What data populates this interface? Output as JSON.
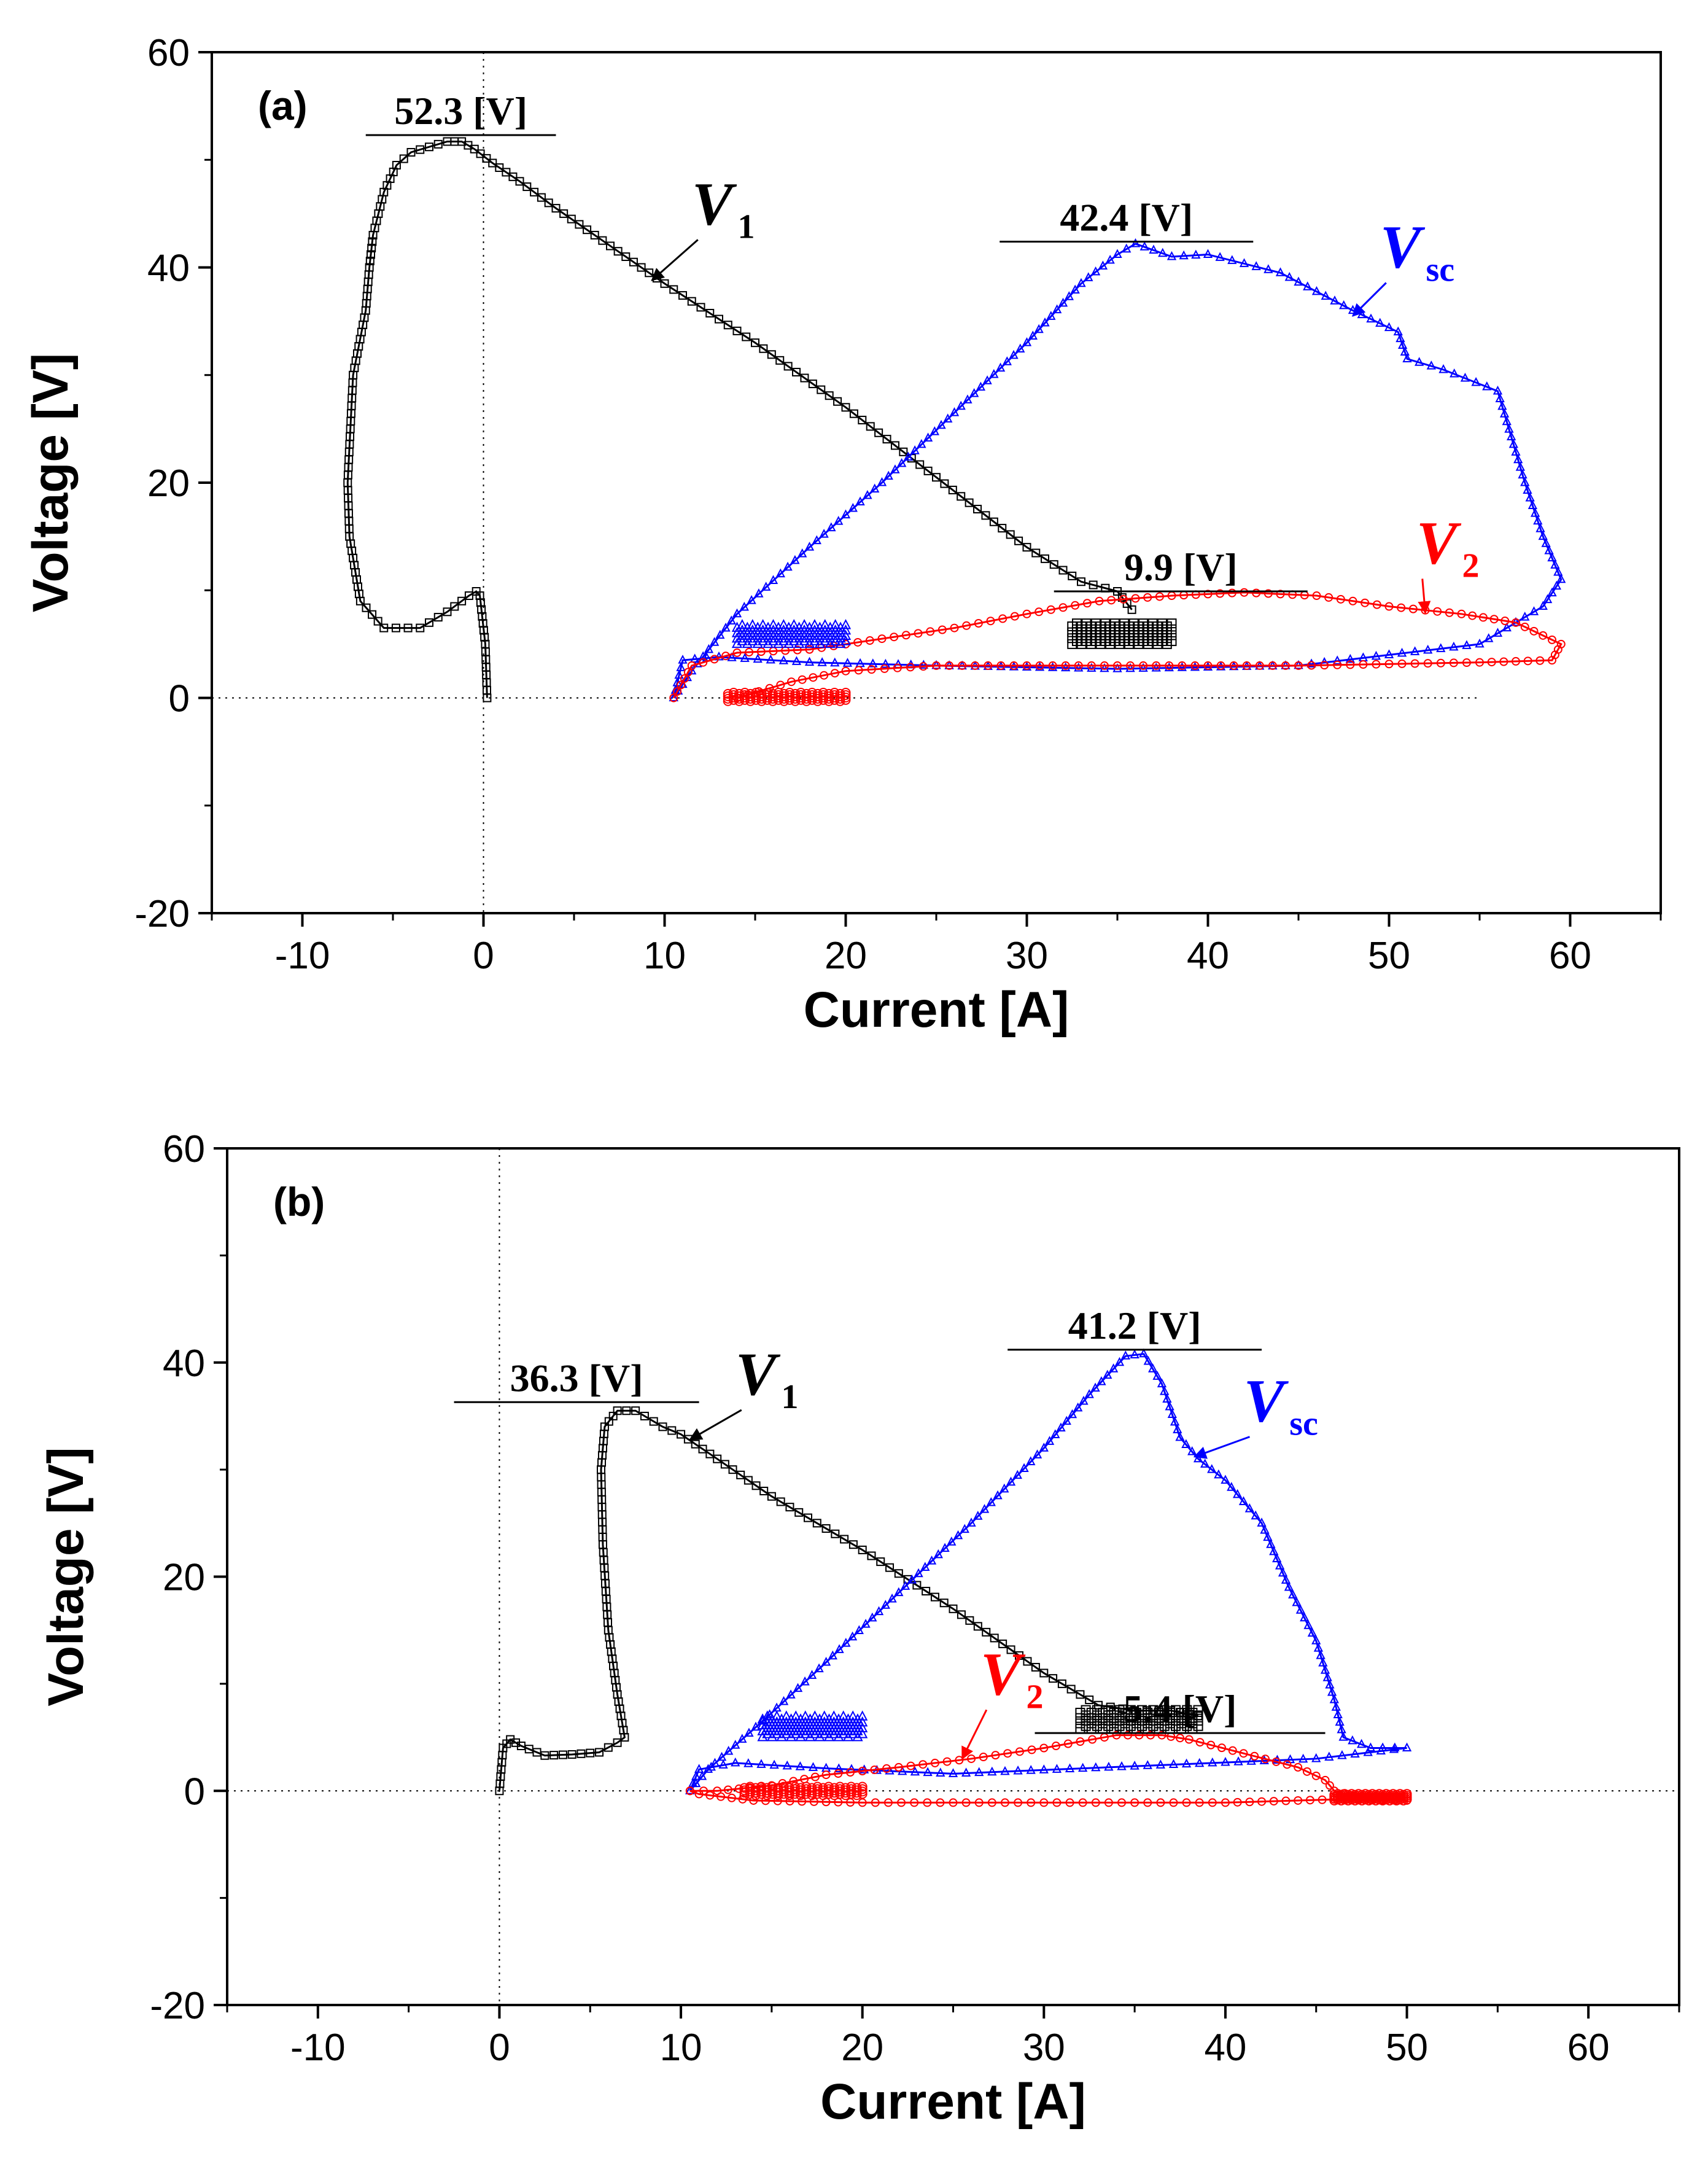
{
  "chart_data": [
    {
      "type": "line",
      "panel_label": "(a)",
      "xlabel": "Current [A]",
      "ylabel": "Voltage [V]",
      "xlim": [
        -15,
        65
      ],
      "ylim": [
        -20,
        60
      ],
      "xticks": [
        -10,
        0,
        10,
        20,
        30,
        40,
        50,
        60
      ],
      "xtick_labels": [
        "-10",
        "0",
        "10",
        "20",
        "30",
        "40",
        "50",
        "60"
      ],
      "yticks": [
        -20,
        0,
        20,
        40,
        60
      ],
      "ytick_labels": [
        "-20",
        "0",
        "20",
        "40",
        "60"
      ],
      "reference_lines": {
        "x": 0,
        "y": 0,
        "x_extent": [
          -15,
          55
        ]
      },
      "series": [
        {
          "name": "V1",
          "label_main": "V",
          "label_sub": "1",
          "color": "#000000",
          "marker": "square",
          "x": [
            0.2,
            0.1,
            -0.2,
            -0.4,
            -0.8,
            -2,
            -3.5,
            -5.5,
            -6.8,
            -7.4,
            -7.5,
            -7.2,
            -6.5,
            -6.3,
            -6.1,
            -5.5,
            -4.8,
            -4,
            -3,
            -2,
            -1.2,
            -0.5,
            0.5,
            2,
            4,
            7,
            10,
            15,
            20,
            25,
            30,
            33,
            35,
            35.8
          ],
          "values": [
            0,
            5,
            9.5,
            9.9,
            9.5,
            8,
            6.5,
            6.5,
            9,
            15,
            20,
            30,
            36,
            40,
            43,
            47,
            49.5,
            50.7,
            51.2,
            51.7,
            51.7,
            51,
            49.7,
            48,
            45.5,
            42,
            38.5,
            33,
            27,
            20.5,
            14,
            10.8,
            9.9,
            8.2
          ]
        },
        {
          "name": "Vsc",
          "label_main": "V",
          "label_sub": "sc",
          "color": "#0000ff",
          "marker": "triangle",
          "x": [
            10.5,
            11.5,
            14,
            18,
            22,
            26,
            30,
            33,
            35,
            36,
            38,
            40,
            44,
            48,
            50.5,
            51,
            53,
            56,
            57.5,
            58.5,
            59.5,
            58.5,
            55,
            45,
            35,
            25,
            18,
            13,
            11,
            10.5
          ],
          "values": [
            0,
            2.5,
            7.8,
            14,
            20,
            26.5,
            33,
            38.5,
            41.2,
            42.2,
            41,
            41.2,
            39.5,
            36,
            34,
            31.5,
            30.5,
            28.5,
            20,
            15,
            11,
            8.5,
            5,
            3,
            2.7,
            3,
            3.3,
            3.8,
            3.5,
            0
          ]
        },
        {
          "name": "V2",
          "label_main": "V",
          "label_sub": "2",
          "color": "#ff0000",
          "marker": "circle",
          "x": [
            10.5,
            11.5,
            14,
            18,
            22,
            26,
            30,
            34,
            38,
            42,
            46,
            50,
            54,
            57,
            59.5,
            59,
            55,
            45,
            35,
            25,
            20,
            17,
            14
          ],
          "values": [
            0,
            3,
            4.2,
            4.5,
            5.5,
            6.5,
            7.8,
            9,
            9.5,
            9.8,
            9.5,
            8.5,
            7.8,
            7,
            5,
            3.5,
            3.3,
            3,
            3,
            3,
            2.5,
            1.5,
            0
          ]
        }
      ],
      "clusters": [
        {
          "series": "Vsc",
          "x": [
            14,
            20
          ],
          "y": [
            5,
            7
          ]
        },
        {
          "series": "V1",
          "x": [
            32.5,
            38
          ],
          "y": [
            5,
            7.2
          ]
        },
        {
          "series": "V2",
          "x": [
            13.5,
            20
          ],
          "y": [
            -0.3,
            0.6
          ]
        }
      ],
      "annotations": [
        {
          "text": "52.3 [V]",
          "series": "V1",
          "level": 52.3,
          "x_from": -6.5,
          "x_to": 4
        },
        {
          "text": "42.4 [V]",
          "series": "Vsc",
          "level": 42.4,
          "x_from": 28.5,
          "x_to": 42.5
        },
        {
          "text": "9.9 [V]",
          "series": "V2",
          "level": 9.9,
          "x_from": 31.5,
          "x_to": 45.5
        }
      ],
      "series_labels": [
        {
          "series": "V1",
          "label_x": 11.5,
          "label_y": 44,
          "arrow_to_x": 9.3,
          "arrow_to_y": 38.8
        },
        {
          "series": "Vsc",
          "label_x": 49.5,
          "label_y": 40,
          "arrow_to_x": 48,
          "arrow_to_y": 35.5
        },
        {
          "series": "V2",
          "label_x": 51.5,
          "label_y": 12.5,
          "arrow_to_x": 52,
          "arrow_to_y": 7.9
        }
      ]
    },
    {
      "type": "line",
      "panel_label": "(b)",
      "xlabel": "Current [A]",
      "ylabel": "Voltage [V]",
      "xlim": [
        -15,
        65
      ],
      "ylim": [
        -20,
        60
      ],
      "xticks": [
        -10,
        0,
        10,
        20,
        30,
        40,
        50,
        60
      ],
      "xtick_labels": [
        "-10",
        "0",
        "10",
        "20",
        "30",
        "40",
        "50",
        "60"
      ],
      "yticks": [
        -20,
        0,
        20,
        40,
        60
      ],
      "ytick_labels": [
        "-20",
        "0",
        "20",
        "40",
        "60"
      ],
      "reference_lines": {
        "x": 0,
        "y": 0,
        "x_extent": [
          -15,
          65
        ]
      },
      "series": [
        {
          "name": "V1",
          "label_main": "V",
          "label_sub": "1",
          "color": "#000000",
          "marker": "square",
          "x": [
            0,
            0.2,
            0.6,
            1.2,
            2.5,
            4,
            5.5,
            6.5,
            6.9,
            6.5,
            6,
            5.7,
            5.6,
            5.8,
            6.5,
            7.5,
            9,
            10,
            12,
            15,
            20,
            25,
            30,
            33,
            35,
            37,
            38.5
          ],
          "values": [
            0,
            4,
            4.8,
            4.2,
            3.3,
            3.4,
            3.6,
            4.5,
            5,
            9,
            15,
            23,
            30,
            34,
            35.5,
            35.5,
            34,
            33.3,
            31,
            27.5,
            22.5,
            17,
            11,
            8,
            7.5,
            7.5,
            7
          ]
        },
        {
          "name": "Vsc",
          "label_main": "V",
          "label_sub": "sc",
          "color": "#0000ff",
          "marker": "triangle",
          "x": [
            10.5,
            11.5,
            14.5,
            18,
            22,
            26,
            30,
            32.5,
            34.5,
            35.5,
            36.5,
            37.5,
            38.5,
            40,
            42,
            43.5,
            45,
            46,
            46.5,
            48,
            50,
            45,
            35,
            25,
            18,
            13,
            11,
            10.5
          ],
          "values": [
            0,
            2,
            6.5,
            12,
            18.5,
            25,
            32,
            37,
            40.6,
            40.8,
            38,
            33,
            31,
            29,
            25,
            19,
            14,
            8.5,
            5,
            4,
            4,
            3,
            2.3,
            1.6,
            2.1,
            2.6,
            2,
            0
          ]
        },
        {
          "name": "V2",
          "label_main": "V",
          "label_sub": "2",
          "color": "#ff0000",
          "marker": "circle",
          "x": [
            10.5,
            12,
            15,
            18,
            22,
            26,
            30,
            34,
            36.5,
            38,
            41,
            44,
            45.5,
            46,
            47,
            50,
            46,
            40,
            30,
            20,
            14,
            11,
            10.5
          ],
          "values": [
            0,
            0,
            0.5,
            1.5,
            2.2,
            3,
            4,
            5.2,
            5.2,
            4.8,
            3.5,
            2.2,
            1,
            0,
            -0.5,
            -0.9,
            -0.8,
            -1.1,
            -1.1,
            -1.1,
            -0.9,
            -0.3,
            0
          ]
        }
      ],
      "clusters": [
        {
          "series": "Vsc",
          "x": [
            14.5,
            20
          ],
          "y": [
            5,
            7.2
          ]
        },
        {
          "series": "V1",
          "x": [
            32,
            38.5
          ],
          "y": [
            5.8,
            7.8
          ]
        },
        {
          "series": "V2",
          "x": [
            13.5,
            20
          ],
          "y": [
            -0.4,
            0.5
          ]
        },
        {
          "series": "V2",
          "x": [
            46,
            50
          ],
          "y": [
            -0.9,
            -0.2
          ]
        }
      ],
      "annotations": [
        {
          "text": "36.3 [V]",
          "series": "V1",
          "level": 36.3,
          "x_from": -2.5,
          "x_to": 11
        },
        {
          "text": "41.2 [V]",
          "series": "Vsc",
          "level": 41.2,
          "x_from": 28,
          "x_to": 42
        },
        {
          "text": "5.4 [V]",
          "series": "V2",
          "level": 5.4,
          "x_from": 29.5,
          "x_to": 45.5
        }
      ],
      "series_labels": [
        {
          "series": "V1",
          "label_x": 13,
          "label_y": 37,
          "arrow_to_x": 10.5,
          "arrow_to_y": 32.8
        },
        {
          "series": "Vsc",
          "label_x": 41,
          "label_y": 34.5,
          "arrow_to_x": 38.3,
          "arrow_to_y": 31.2
        },
        {
          "series": "V2",
          "label_x": 26.5,
          "label_y": 9,
          "arrow_to_x": 25.5,
          "arrow_to_y": 3
        }
      ]
    }
  ]
}
